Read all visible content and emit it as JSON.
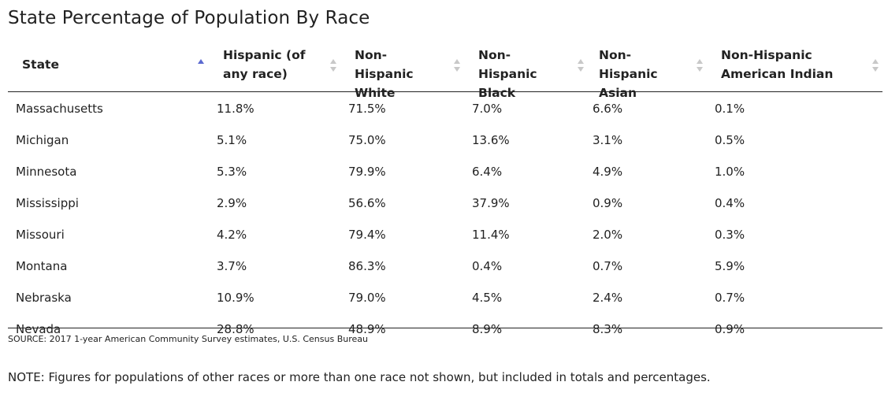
{
  "colors": {
    "text": "#222222",
    "sort_active": "#5b6ad0",
    "sort_inactive": "#c8c8c8"
  },
  "chart_data": {
    "type": "table",
    "title": "State Percentage of Population By Race",
    "columns": [
      {
        "label": "State",
        "sort": "ascending"
      },
      {
        "label": "Hispanic (of any race)",
        "sort": "none"
      },
      {
        "label": "Non-Hispanic White",
        "sort": "none"
      },
      {
        "label": "Non-Hispanic Black",
        "sort": "none"
      },
      {
        "label": "Non-Hispanic Asian",
        "sort": "none"
      },
      {
        "label": "Non-Hispanic American Indian",
        "sort": "none"
      }
    ],
    "rows": [
      [
        "Massachusetts",
        "11.8%",
        "71.5%",
        "7.0%",
        "6.6%",
        "0.1%"
      ],
      [
        "Michigan",
        "5.1%",
        "75.0%",
        "13.6%",
        "3.1%",
        "0.5%"
      ],
      [
        "Minnesota",
        "5.3%",
        "79.9%",
        "6.4%",
        "4.9%",
        "1.0%"
      ],
      [
        "Mississippi",
        "2.9%",
        "56.6%",
        "37.9%",
        "0.9%",
        "0.4%"
      ],
      [
        "Missouri",
        "4.2%",
        "79.4%",
        "11.4%",
        "2.0%",
        "0.3%"
      ],
      [
        "Montana",
        "3.7%",
        "86.3%",
        "0.4%",
        "0.7%",
        "5.9%"
      ],
      [
        "Nebraska",
        "10.9%",
        "79.0%",
        "4.5%",
        "2.4%",
        "0.7%"
      ],
      [
        "Nevada",
        "28.8%",
        "48.9%",
        "8.9%",
        "8.3%",
        "0.9%"
      ]
    ],
    "source": "SOURCE: 2017 1-year American Community Survey estimates, U.S. Census Bureau",
    "note": "NOTE: Figures for populations of other races or more than one race not shown, but included in totals and percentages."
  }
}
